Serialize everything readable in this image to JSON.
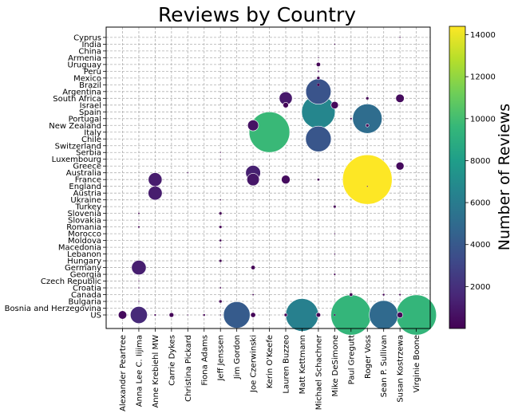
{
  "chart_data": {
    "type": "scatter",
    "title": "Reviews by Country",
    "xlabel": "",
    "ylabel": "",
    "grid": true,
    "colormap": "viridis",
    "x_categories": [
      "Alexander Peartree",
      "Anna Lee C. Iijima",
      "Anne Krebiehl MW",
      "Carrie Dykes",
      "Christina Pickard",
      "Fiona Adams",
      "Jeff Jenssen",
      "Jim Gordon",
      "Joe Czerwinski",
      "Kerin O'Keefe",
      "Lauren Buzzeo",
      "Matt Kettmann",
      "Michael Schachner",
      "Mike DeSimone",
      "Paul Gregutt",
      "Roger Voss",
      "Sean P. Sullivan",
      "Susan Kostrzewa",
      "Virginie Boone"
    ],
    "y_categories": [
      "US",
      "Bosnia and Herzegovina",
      "Bulgaria",
      "Canada",
      "Croatia",
      "Czech Republic",
      "Georgia",
      "Germany",
      "Hungary",
      "Lebanon",
      "Macedonia",
      "Moldova",
      "Morocco",
      "Romania",
      "Slovakia",
      "Slovenia",
      "Turkey",
      "Ukraine",
      "Austria",
      "England",
      "France",
      "Australia",
      "Greece",
      "Luxembourg",
      "Serbia",
      "Switzerland",
      "Chile",
      "Italy",
      "New Zealand",
      "Portugal",
      "Spain",
      "Israel",
      "South Africa",
      "Argentina",
      "Brazil",
      "Mexico",
      "Peru",
      "Uruguay",
      "Armenia",
      "China",
      "India",
      "Cyprus"
    ],
    "colorbar": {
      "label": "Number of Reviews",
      "ticks": [
        "2000",
        "4000",
        "6000",
        "8000",
        "10000",
        "12000",
        "14000"
      ],
      "min": 0,
      "max": 14400
    },
    "points": [
      {
        "x": "Alexander Peartree",
        "y": "US",
        "value": 420
      },
      {
        "x": "Anna Lee C. Iijima",
        "y": "US",
        "value": 1700
      },
      {
        "x": "Anne Krebiehl MW",
        "y": "US",
        "value": 20
      },
      {
        "x": "Carrie Dykes",
        "y": "US",
        "value": 130
      },
      {
        "x": "Christina Pickard",
        "y": "US",
        "value": 8
      },
      {
        "x": "Fiona Adams",
        "y": "US",
        "value": 25
      },
      {
        "x": "Jeff Jenssen",
        "y": "US",
        "value": 8
      },
      {
        "x": "Jim Gordon",
        "y": "US",
        "value": 4150
      },
      {
        "x": "Joe Czerwinski",
        "y": "US",
        "value": 150
      },
      {
        "x": "Lauren Buzzeo",
        "y": "US",
        "value": 60
      },
      {
        "x": "Matt Kettmann",
        "y": "US",
        "value": 6300
      },
      {
        "x": "Michael Schachner",
        "y": "US",
        "value": 120
      },
      {
        "x": "Mike DeSimone",
        "y": "US",
        "value": 20
      },
      {
        "x": "Paul Gregutt",
        "y": "US",
        "value": 9500
      },
      {
        "x": "Sean P. Sullivan",
        "y": "US",
        "value": 4900
      },
      {
        "x": "Susan Kostrzewa",
        "y": "US",
        "value": 200
      },
      {
        "x": "Virginie Boone",
        "y": "US",
        "value": 9500
      },
      {
        "x": "Anna Lee C. Iijima",
        "y": "Bulgaria",
        "value": 10
      },
      {
        "x": "Jeff Jenssen",
        "y": "Bulgaria",
        "value": 60
      },
      {
        "x": "Jeff Jenssen",
        "y": "Croatia",
        "value": 15
      },
      {
        "x": "Paul Gregutt",
        "y": "Canada",
        "value": 70
      },
      {
        "x": "Sean P. Sullivan",
        "y": "Canada",
        "value": 25
      },
      {
        "x": "Susan Kostrzewa",
        "y": "Canada",
        "value": 20
      },
      {
        "x": "Joe Czerwinski",
        "y": "Canada",
        "value": 15
      },
      {
        "x": "Anna Lee C. Iijima",
        "y": "Croatia",
        "value": 10
      },
      {
        "x": "Anna Lee C. Iijima",
        "y": "Czech Republic",
        "value": 5
      },
      {
        "x": "Mike DeSimone",
        "y": "Georgia",
        "value": 20
      },
      {
        "x": "Anna Lee C. Iijima",
        "y": "Germany",
        "value": 1250
      },
      {
        "x": "Joe Czerwinski",
        "y": "Germany",
        "value": 110
      },
      {
        "x": "Jeff Jenssen",
        "y": "Hungary",
        "value": 40
      },
      {
        "x": "Susan Kostrzewa",
        "y": "Hungary",
        "value": 10
      },
      {
        "x": "Mike DeSimone",
        "y": "Lebanon",
        "value": 10
      },
      {
        "x": "Jeff Jenssen",
        "y": "Macedonia",
        "value": 8
      },
      {
        "x": "Jeff Jenssen",
        "y": "Moldova",
        "value": 30
      },
      {
        "x": "Mike DeSimone",
        "y": "Morocco",
        "value": 8
      },
      {
        "x": "Jeff Jenssen",
        "y": "Romania",
        "value": 40
      },
      {
        "x": "Anna Lee C. Iijima",
        "y": "Romania",
        "value": 20
      },
      {
        "x": "Anna Lee C. Iijima",
        "y": "Slovakia",
        "value": 5
      },
      {
        "x": "Jeff Jenssen",
        "y": "Slovenia",
        "value": 45
      },
      {
        "x": "Anna Lee C. Iijima",
        "y": "Slovenia",
        "value": 15
      },
      {
        "x": "Mike DeSimone",
        "y": "Turkey",
        "value": 40
      },
      {
        "x": "Jeff Jenssen",
        "y": "Ukraine",
        "value": 10
      },
      {
        "x": "Anne Krebiehl MW",
        "y": "Austria",
        "value": 1150
      },
      {
        "x": "Anne Krebiehl MW",
        "y": "England",
        "value": 10
      },
      {
        "x": "Roger Voss",
        "y": "England",
        "value": 5
      },
      {
        "x": "Anne Krebiehl MW",
        "y": "France",
        "value": 1100
      },
      {
        "x": "Joe Czerwinski",
        "y": "France",
        "value": 900
      },
      {
        "x": "Lauren Buzzeo",
        "y": "France",
        "value": 450
      },
      {
        "x": "Michael Schachner",
        "y": "France",
        "value": 30
      },
      {
        "x": "Roger Voss",
        "y": "France",
        "value": 14400
      },
      {
        "x": "Joe Czerwinski",
        "y": "Australia",
        "value": 1300
      },
      {
        "x": "Christina Pickard",
        "y": "Australia",
        "value": 10
      },
      {
        "x": "Susan Kostrzewa",
        "y": "Greece",
        "value": 380
      },
      {
        "x": "Jeff Jenssen",
        "y": "Luxembourg",
        "value": 6
      },
      {
        "x": "Jeff Jenssen",
        "y": "Serbia",
        "value": 6
      },
      {
        "x": "Michael Schachner",
        "y": "Chile",
        "value": 3850
      },
      {
        "x": "Kerin O'Keefe",
        "y": "Italy",
        "value": 9700
      },
      {
        "x": "Joe Czerwinski",
        "y": "New Zealand",
        "value": 700
      },
      {
        "x": "Roger Voss",
        "y": "New Zealand",
        "value": 60
      },
      {
        "x": "Roger Voss",
        "y": "Portugal",
        "value": 5100
      },
      {
        "x": "Paul Gregutt",
        "y": "Portugal",
        "value": 20
      },
      {
        "x": "Michael Schachner",
        "y": "Spain",
        "value": 6600
      },
      {
        "x": "Lauren Buzzeo",
        "y": "Israel",
        "value": 180
      },
      {
        "x": "Mike DeSimone",
        "y": "Israel",
        "value": 320
      },
      {
        "x": "Lauren Buzzeo",
        "y": "South Africa",
        "value": 1000
      },
      {
        "x": "Roger Voss",
        "y": "South Africa",
        "value": 45
      },
      {
        "x": "Susan Kostrzewa",
        "y": "South Africa",
        "value": 420
      },
      {
        "x": "Michael Schachner",
        "y": "Argentina",
        "value": 3750
      },
      {
        "x": "Michael Schachner",
        "y": "Brazil",
        "value": 50
      },
      {
        "x": "Michael Schachner",
        "y": "Mexico",
        "value": 60
      },
      {
        "x": "Michael Schachner",
        "y": "Peru",
        "value": 15
      },
      {
        "x": "Michael Schachner",
        "y": "Uruguay",
        "value": 110
      },
      {
        "x": "Michael Schachner",
        "y": "Armenia",
        "value": 3
      },
      {
        "x": "Mike DeSimone",
        "y": "India",
        "value": 10
      },
      {
        "x": "Susan Kostrzewa",
        "y": "Cyprus",
        "value": 10
      }
    ]
  }
}
